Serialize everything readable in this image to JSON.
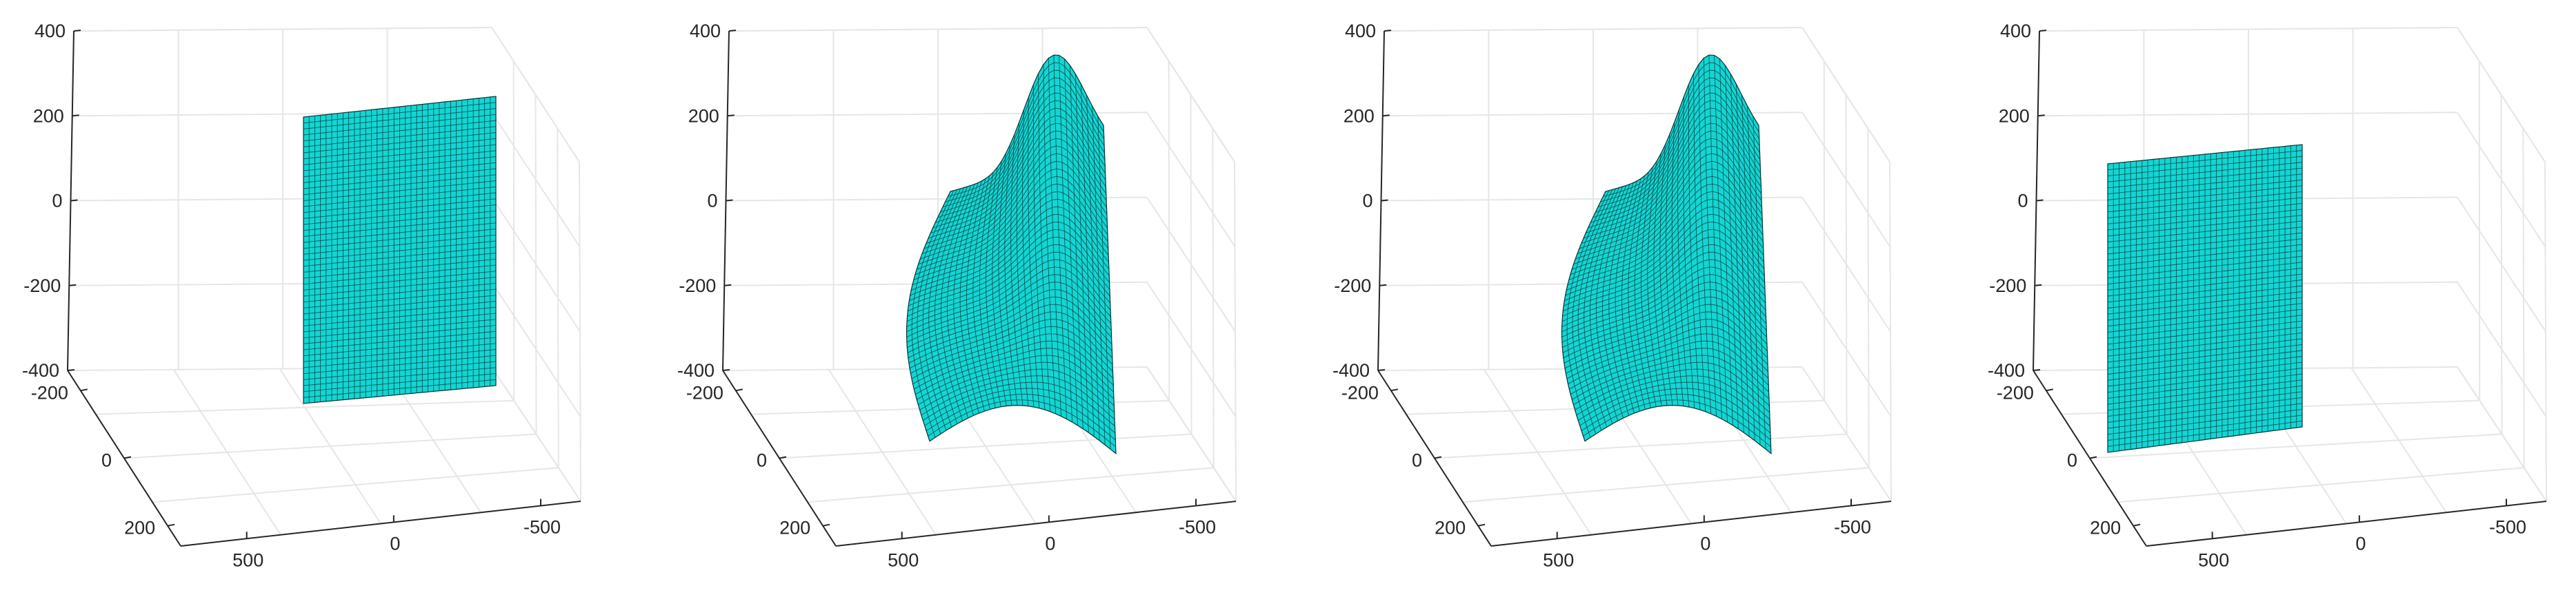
{
  "colors": {
    "surface": "#12D6D3",
    "mesh": "#0A2F33",
    "axis": "#262626",
    "grid": "#E6E6E6",
    "background": "#FFFFFF"
  },
  "chart_data": [
    {
      "type": "surface3d",
      "title": "",
      "surface": "flat",
      "grid": true,
      "z_ticks": [
        "400",
        "200",
        "0",
        "-200",
        "-400"
      ],
      "y_ticks": [
        "-200",
        "0",
        "200"
      ],
      "x_ticks": [
        "500",
        "0",
        "-500"
      ],
      "zlim": [
        -400,
        400
      ]
    },
    {
      "type": "surface3d",
      "title": "",
      "surface": "deformed",
      "grid": true,
      "z_ticks": [
        "400",
        "200",
        "0",
        "-200",
        "-400"
      ],
      "y_ticks": [
        "-200",
        "0",
        "200"
      ],
      "x_ticks": [
        "500",
        "0",
        "-500"
      ],
      "zlim": [
        -400,
        400
      ]
    },
    {
      "type": "surface3d",
      "title": "",
      "surface": "deformed",
      "grid": true,
      "z_ticks": [
        "400",
        "200",
        "0",
        "-200",
        "-400"
      ],
      "y_ticks": [
        "-200",
        "0",
        "200"
      ],
      "x_ticks": [
        "500",
        "0",
        "-500"
      ],
      "zlim": [
        -400,
        400
      ]
    },
    {
      "type": "surface3d",
      "title": "",
      "surface": "flat",
      "grid": true,
      "z_ticks": [
        "400",
        "200",
        "0",
        "-200",
        "-400"
      ],
      "y_ticks": [
        "-200",
        "0",
        "200"
      ],
      "x_ticks": [
        "500",
        "0",
        "-500"
      ],
      "zlim": [
        -400,
        400
      ]
    }
  ]
}
